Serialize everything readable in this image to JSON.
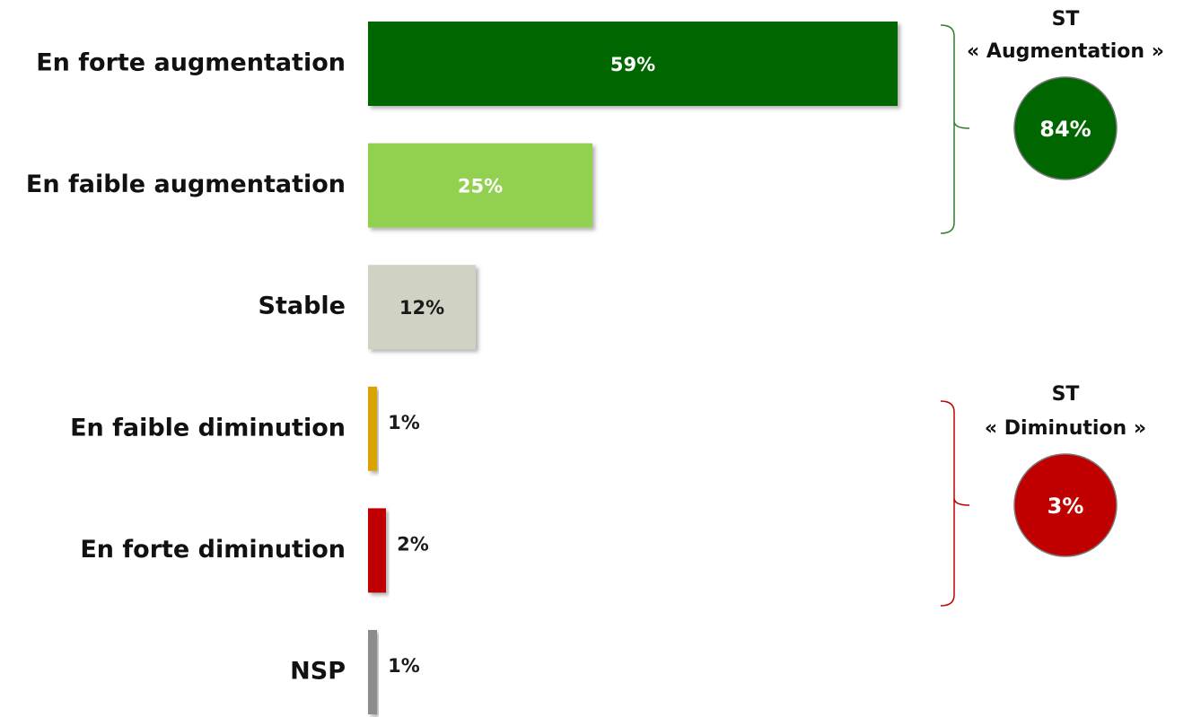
{
  "chart_data": {
    "type": "hbar",
    "categories": [
      "En forte augmentation",
      "En faible augmentation",
      "Stable",
      "En faible diminution",
      "En forte diminution",
      "NSP"
    ],
    "values": [
      59,
      25,
      12,
      1,
      2,
      1
    ],
    "value_labels": [
      "59%",
      "25%",
      "12%",
      "1%",
      "2%",
      "1%"
    ],
    "colors": [
      "#006600",
      "#92d050",
      "#d0d3c4",
      "#d9a400",
      "#c00000",
      "#8c8c8c"
    ],
    "value_label_colors": [
      "#ffffff",
      "#ffffff",
      "#1a1a1a",
      "#1a1a1a",
      "#1a1a1a",
      "#1a1a1a"
    ],
    "xlim": [
      0,
      100
    ],
    "subtotals": [
      {
        "title": [
          "ST",
          "« Augmentation »"
        ],
        "value": 84,
        "value_label": "84%",
        "color": "#006600",
        "bracket_color": "#2e7d32"
      },
      {
        "title": [
          "ST",
          "« Diminution »"
        ],
        "value": 3,
        "value_label": "3%",
        "color": "#c00000",
        "bracket_color": "#c00000"
      }
    ]
  }
}
